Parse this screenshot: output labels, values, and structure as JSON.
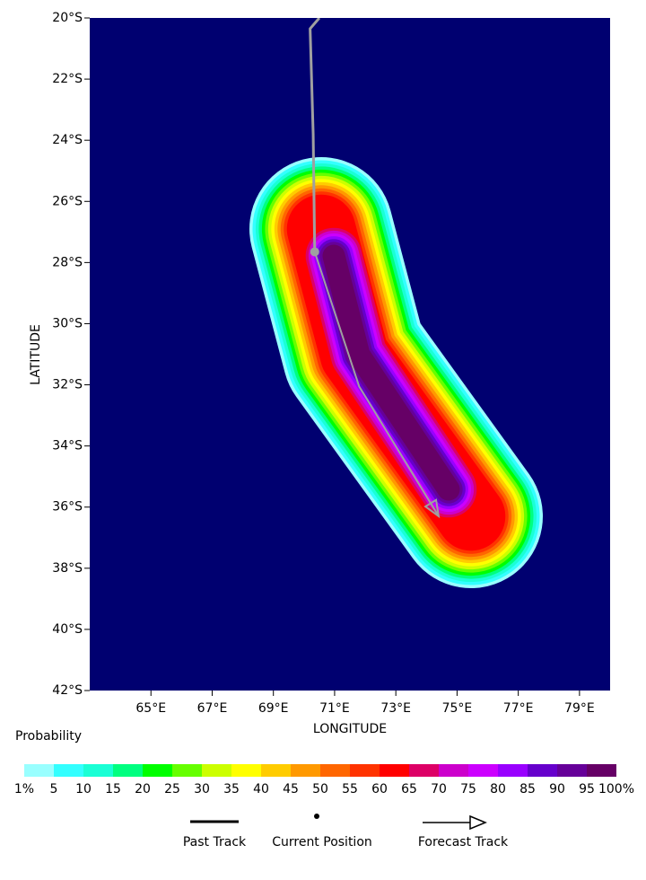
{
  "map": {
    "xlabel": "LONGITUDE",
    "ylabel": "LATITUDE",
    "xlim": [
      63,
      80
    ],
    "ylim": [
      -42,
      -20
    ],
    "xticks": [
      {
        "value": 65,
        "label": "65°E"
      },
      {
        "value": 67,
        "label": "67°E"
      },
      {
        "value": 69,
        "label": "69°E"
      },
      {
        "value": 71,
        "label": "71°E"
      },
      {
        "value": 73,
        "label": "73°E"
      },
      {
        "value": 75,
        "label": "75°E"
      },
      {
        "value": 77,
        "label": "77°E"
      },
      {
        "value": 79,
        "label": "79°E"
      }
    ],
    "yticks": [
      {
        "value": -20,
        "label": "20°S"
      },
      {
        "value": -22,
        "label": "22°S"
      },
      {
        "value": -24,
        "label": "24°S"
      },
      {
        "value": -26,
        "label": "26°S"
      },
      {
        "value": -28,
        "label": "28°S"
      },
      {
        "value": -30,
        "label": "30°S"
      },
      {
        "value": -32,
        "label": "32°S"
      },
      {
        "value": -34,
        "label": "34°S"
      },
      {
        "value": -36,
        "label": "36°S"
      },
      {
        "value": -38,
        "label": "38°S"
      },
      {
        "value": -40,
        "label": "40°S"
      },
      {
        "value": -42,
        "label": "42°S"
      }
    ],
    "past_track": {
      "lon": [
        70.5,
        70.2,
        70.3,
        70.35
      ],
      "lat": [
        -20,
        -20.35,
        -23.8,
        -27.65
      ]
    },
    "current_position": {
      "lon": 70.35,
      "lat": -27.65
    },
    "forecast_track": {
      "lon": [
        70.35,
        71.8,
        74.4
      ],
      "lat": [
        -27.65,
        -32.05,
        -36.3
      ]
    },
    "colorbar": {
      "title": "Probability",
      "colors": [
        "#99ffff",
        "#33ffff",
        "#1affd5",
        "#00ff80",
        "#00ff00",
        "#66ff00",
        "#ccff00",
        "#ffff00",
        "#ffcc00",
        "#ff9900",
        "#ff6600",
        "#ff3300",
        "#ff0000",
        "#dd0066",
        "#cc00cc",
        "#cc00ff",
        "#9900ff",
        "#6600cc",
        "#660099",
        "#660066"
      ],
      "labels": [
        "1%",
        "5",
        "10",
        "15",
        "20",
        "25",
        "30",
        "35",
        "40",
        "45",
        "50",
        "55",
        "60",
        "65",
        "70",
        "75",
        "80",
        "85",
        "90",
        "95",
        "100%"
      ]
    },
    "legend": [
      "Past Track",
      "Current Position",
      "Forecast Track"
    ]
  }
}
